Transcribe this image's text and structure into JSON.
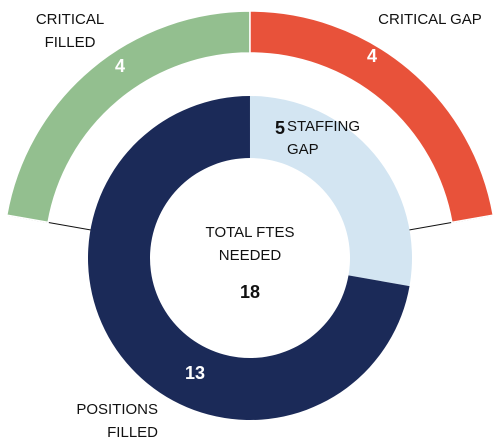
{
  "chart_data": {
    "type": "donut",
    "center_label": "TOTAL FTES NEEDED",
    "total": 18,
    "inner": {
      "categories": [
        "STAFFING GAP",
        "POSITIONS FILLED"
      ],
      "values": [
        5,
        13
      ],
      "colors": [
        "#d3e5f2",
        "#1b2a58"
      ]
    },
    "outer": {
      "categories": [
        "CRITICAL FILLED",
        "CRITICAL GAP"
      ],
      "values": [
        4,
        4
      ],
      "colors": [
        "#93bf8f",
        "#e8523a"
      ]
    }
  }
}
